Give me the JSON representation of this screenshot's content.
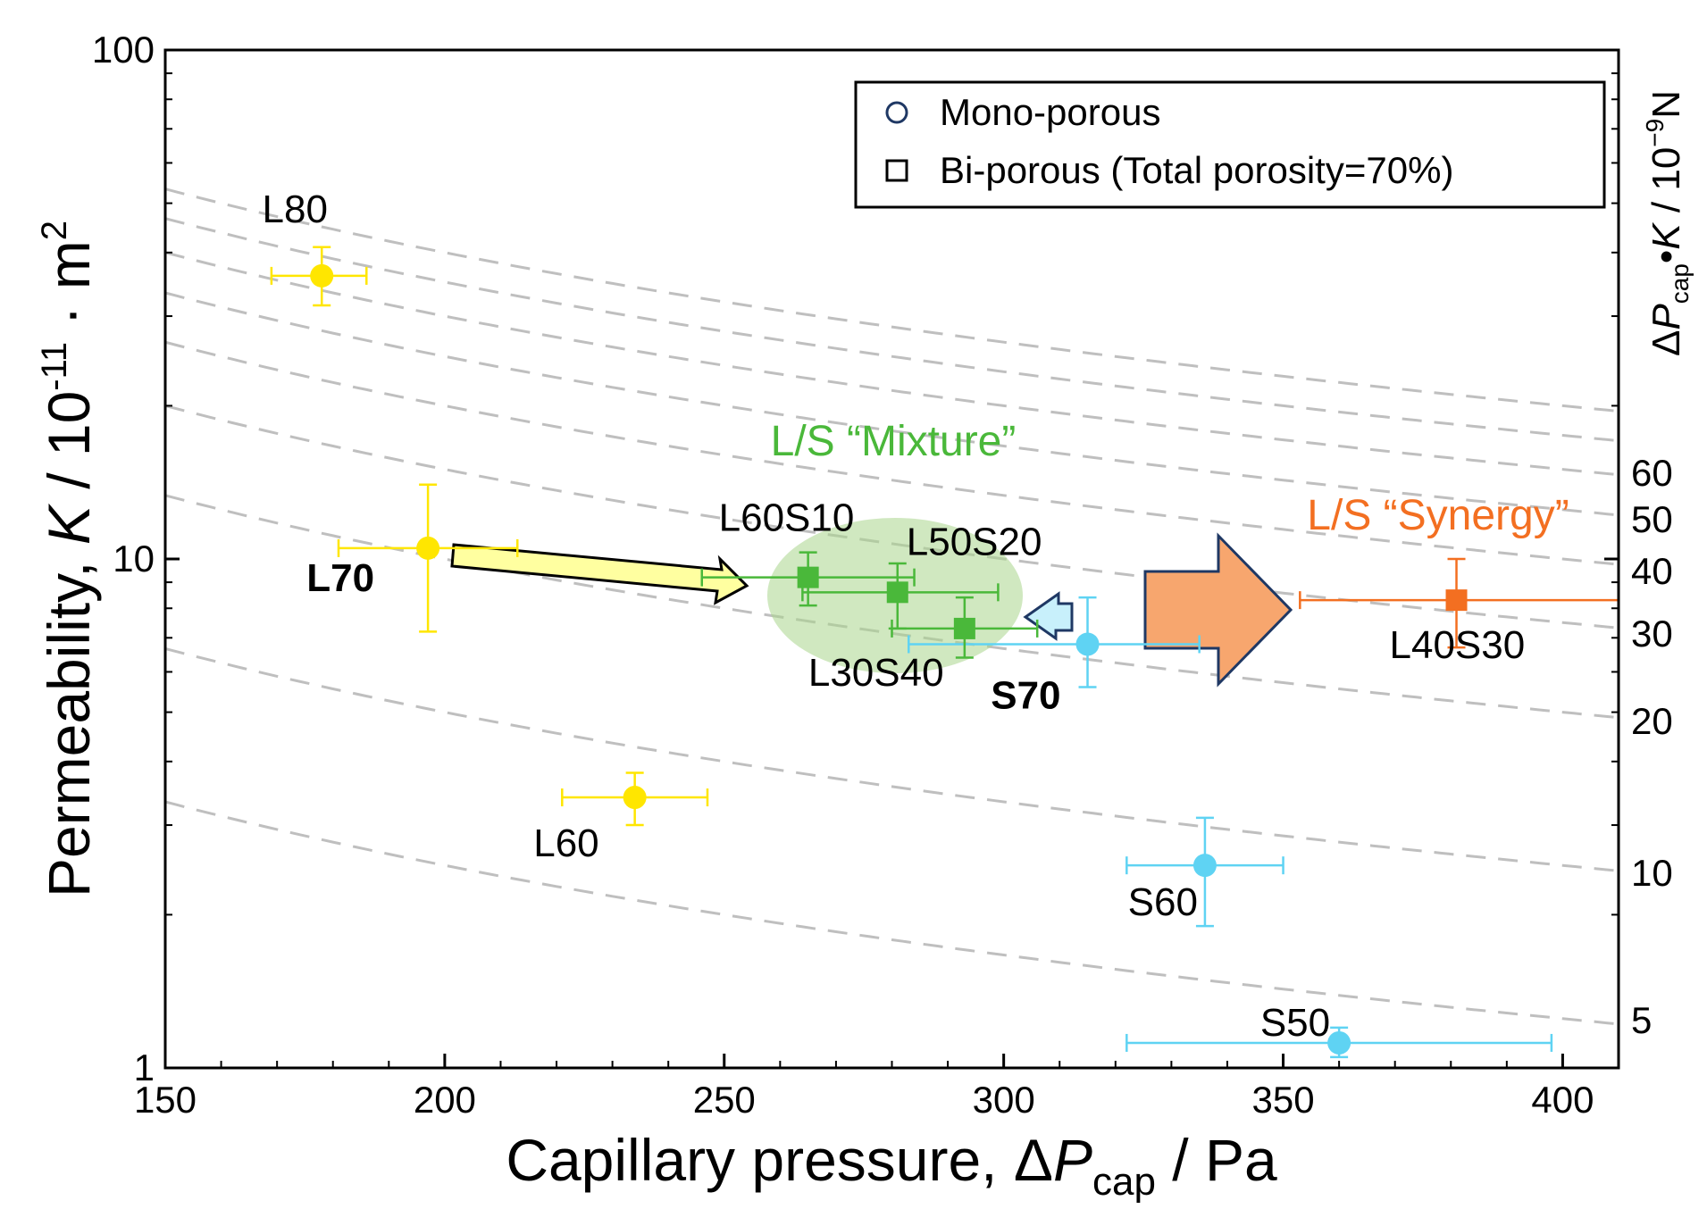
{
  "chart_data": {
    "type": "scatter",
    "xlabel": {
      "main": "Capillary pressure, ",
      "delta": "Δ",
      "var": "P",
      "sub": "cap",
      "unit": " / Pa"
    },
    "ylabel": {
      "main": "Permeability, ",
      "var": "K",
      "unit": " / 10",
      "exp": "-11",
      "tail": " · m",
      "sup": "2"
    },
    "right_label": {
      "delta": "Δ",
      "var": "P",
      "sub": "cap",
      "dot": "•",
      "var2": "K",
      "unit": " / 10",
      "exp": "−9",
      "tail": "N"
    },
    "xlim": [
      150,
      410
    ],
    "ylim": [
      1,
      100
    ],
    "yscale": "log",
    "x_ticks": [
      "150",
      "200",
      "250",
      "300",
      "350",
      "400"
    ],
    "y_ticks": [
      "1",
      "10",
      "100"
    ],
    "right_ticks": [
      "60",
      "50",
      "40",
      "30",
      "20",
      "10",
      "5"
    ],
    "grid": false,
    "legend": {
      "position": "top-right",
      "items": [
        {
          "marker": "circle",
          "label": "Mono-porous"
        },
        {
          "marker": "square",
          "label": "Bi-porous (Total porosity=70%)"
        }
      ]
    },
    "iso_lines": {
      "style": "dashed",
      "color": "#bfbfbf",
      "product_values": [
        5,
        10,
        20,
        30,
        40,
        50,
        60,
        70,
        80
      ]
    },
    "colors": {
      "L": "#ffe600",
      "S": "#5fd3f3",
      "mixture": "#4ab83a",
      "synergy": "#f36f21"
    },
    "series": [
      {
        "name": "L",
        "marker": "circle",
        "color": "#ffe600",
        "points": [
          {
            "label": "L80",
            "x": 178,
            "y": 36,
            "xerr": [
              169,
              186
            ],
            "yerr": [
              31.5,
              41
            ],
            "bold": false
          },
          {
            "label": "L70",
            "x": 197,
            "y": 10.5,
            "xerr": [
              181,
              213
            ],
            "yerr": [
              7.2,
              14
            ],
            "bold": true
          },
          {
            "label": "L60",
            "x": 234,
            "y": 3.4,
            "xerr": [
              221,
              247
            ],
            "yerr": [
              3.0,
              3.8
            ],
            "bold": false
          }
        ]
      },
      {
        "name": "S",
        "marker": "circle",
        "color": "#5fd3f3",
        "points": [
          {
            "label": "S70",
            "x": 315,
            "y": 6.8,
            "xerr": [
              283,
              335
            ],
            "yerr": [
              5.6,
              8.4
            ],
            "bold": true
          },
          {
            "label": "S60",
            "x": 336,
            "y": 2.5,
            "xerr": [
              322,
              350
            ],
            "yerr": [
              1.9,
              3.1
            ],
            "bold": false
          },
          {
            "label": "S50",
            "x": 360,
            "y": 1.12,
            "xerr": [
              322,
              398
            ],
            "yerr": [
              1.05,
              1.2
            ],
            "bold": false
          }
        ]
      },
      {
        "name": "L/S “Mixture”",
        "marker": "square",
        "color": "#4ab83a",
        "points": [
          {
            "label": "L60S10",
            "x": 265,
            "y": 9.2,
            "xerr": [
              246,
              284
            ],
            "yerr": [
              8.1,
              10.3
            ],
            "bold": false
          },
          {
            "label": "L50S20",
            "x": 281,
            "y": 8.6,
            "xerr": [
              264,
              299
            ],
            "yerr": [
              7.3,
              9.8
            ],
            "bold": false
          },
          {
            "label": "L30S40",
            "x": 293,
            "y": 7.3,
            "xerr": [
              280,
              306
            ],
            "yerr": [
              6.4,
              8.4
            ],
            "bold": false
          }
        ]
      },
      {
        "name": "L/S “Synergy”",
        "marker": "square",
        "color": "#f36f21",
        "points": [
          {
            "label": "L40S30",
            "x": 381,
            "y": 8.3,
            "xerr": [
              353,
              410
            ],
            "yerr": [
              6.7,
              10
            ],
            "bold": false
          }
        ]
      }
    ],
    "annotations": [
      {
        "text": "L/S “Mixture”",
        "color": "#4ab83a"
      },
      {
        "text": "L/S “Synergy”",
        "color": "#f36f21"
      }
    ]
  }
}
